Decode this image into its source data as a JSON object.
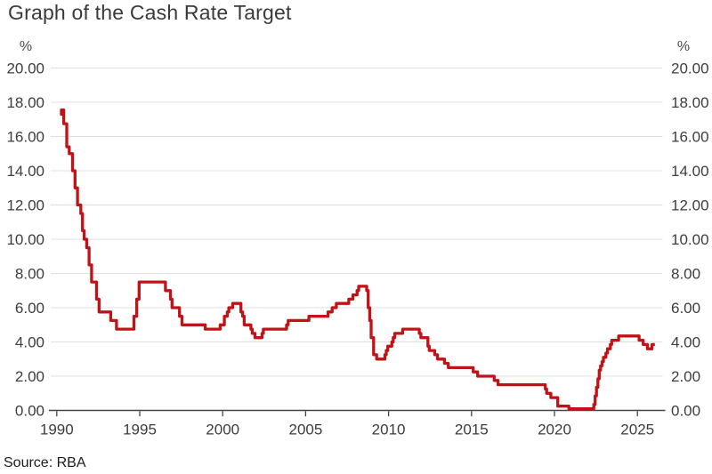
{
  "title": "Graph of the Cash Rate Target",
  "source": "Source: RBA",
  "axis_units": {
    "left": "%",
    "right": "%"
  },
  "colors": {
    "line": "#c11218",
    "grid": "#e0e0e0",
    "axis": "#444444",
    "text": "#3d3d3d",
    "background": "#ffffff"
  },
  "chart_data": {
    "type": "line",
    "subtype": "step",
    "title": "Graph of the Cash Rate Target",
    "xlabel": "",
    "ylabel": "%",
    "ylim": [
      0,
      20
    ],
    "xlim": [
      1989.6,
      2026.4
    ],
    "grid": "horizontal",
    "legend": "none",
    "source": "Source: RBA",
    "y_ticks": {
      "values": [
        0,
        2,
        4,
        6,
        8,
        10,
        12,
        14,
        16,
        18,
        20
      ],
      "labels": [
        "0.00",
        "2.00",
        "4.00",
        "6.00",
        "8.00",
        "10.00",
        "12.00",
        "14.00",
        "16.00",
        "18.00",
        "20.00"
      ]
    },
    "x_ticks": {
      "values": [
        1990,
        1995,
        2000,
        2005,
        2010,
        2015,
        2020,
        2025
      ],
      "labels": [
        "1990",
        "1995",
        "2000",
        "2005",
        "2010",
        "2015",
        "2020",
        "2025"
      ]
    },
    "series": [
      {
        "name": "Cash Rate Target (%)",
        "color": "#c11218",
        "x_end": 2026.05,
        "points": [
          [
            1990.2,
            17.3
          ],
          [
            1990.28,
            17.55
          ],
          [
            1990.42,
            16.75
          ],
          [
            1990.6,
            15.4
          ],
          [
            1990.75,
            15.0
          ],
          [
            1990.95,
            14.0
          ],
          [
            1991.1,
            13.0
          ],
          [
            1991.25,
            12.0
          ],
          [
            1991.45,
            11.5
          ],
          [
            1991.55,
            10.5
          ],
          [
            1991.65,
            10.0
          ],
          [
            1991.8,
            9.5
          ],
          [
            1991.95,
            8.5
          ],
          [
            1992.1,
            7.5
          ],
          [
            1992.4,
            6.5
          ],
          [
            1992.55,
            5.75
          ],
          [
            1993.25,
            5.25
          ],
          [
            1993.6,
            4.75
          ],
          [
            1994.65,
            5.5
          ],
          [
            1994.82,
            6.5
          ],
          [
            1994.96,
            7.5
          ],
          [
            1996.55,
            7.0
          ],
          [
            1996.85,
            6.5
          ],
          [
            1996.95,
            6.0
          ],
          [
            1997.4,
            5.5
          ],
          [
            1997.55,
            5.0
          ],
          [
            1998.95,
            4.75
          ],
          [
            1999.85,
            5.0
          ],
          [
            2000.1,
            5.5
          ],
          [
            2000.28,
            5.75
          ],
          [
            2000.37,
            6.0
          ],
          [
            2000.6,
            6.25
          ],
          [
            2001.1,
            5.75
          ],
          [
            2001.2,
            5.5
          ],
          [
            2001.3,
            5.0
          ],
          [
            2001.7,
            4.75
          ],
          [
            2001.78,
            4.5
          ],
          [
            2001.95,
            4.25
          ],
          [
            2002.37,
            4.5
          ],
          [
            2002.45,
            4.75
          ],
          [
            2003.85,
            5.0
          ],
          [
            2003.95,
            5.25
          ],
          [
            2005.2,
            5.5
          ],
          [
            2006.35,
            5.75
          ],
          [
            2006.6,
            6.0
          ],
          [
            2006.85,
            6.25
          ],
          [
            2007.6,
            6.5
          ],
          [
            2007.85,
            6.75
          ],
          [
            2008.1,
            7.0
          ],
          [
            2008.2,
            7.25
          ],
          [
            2008.68,
            7.0
          ],
          [
            2008.77,
            6.0
          ],
          [
            2008.86,
            5.25
          ],
          [
            2008.95,
            4.25
          ],
          [
            2009.1,
            3.25
          ],
          [
            2009.28,
            3.0
          ],
          [
            2009.78,
            3.25
          ],
          [
            2009.86,
            3.5
          ],
          [
            2009.95,
            3.75
          ],
          [
            2010.2,
            4.0
          ],
          [
            2010.28,
            4.25
          ],
          [
            2010.37,
            4.5
          ],
          [
            2010.85,
            4.75
          ],
          [
            2011.85,
            4.5
          ],
          [
            2011.95,
            4.25
          ],
          [
            2012.37,
            3.75
          ],
          [
            2012.45,
            3.5
          ],
          [
            2012.78,
            3.25
          ],
          [
            2012.95,
            3.0
          ],
          [
            2013.37,
            2.75
          ],
          [
            2013.6,
            2.5
          ],
          [
            2015.1,
            2.25
          ],
          [
            2015.37,
            2.0
          ],
          [
            2016.37,
            1.75
          ],
          [
            2016.6,
            1.5
          ],
          [
            2019.45,
            1.25
          ],
          [
            2019.53,
            1.0
          ],
          [
            2019.78,
            0.75
          ],
          [
            2020.2,
            0.25
          ],
          [
            2020.87,
            0.1
          ],
          [
            2022.37,
            0.35
          ],
          [
            2022.45,
            0.85
          ],
          [
            2022.53,
            1.35
          ],
          [
            2022.62,
            1.85
          ],
          [
            2022.7,
            2.35
          ],
          [
            2022.78,
            2.6
          ],
          [
            2022.87,
            2.85
          ],
          [
            2022.95,
            3.1
          ],
          [
            2023.1,
            3.35
          ],
          [
            2023.2,
            3.6
          ],
          [
            2023.37,
            3.85
          ],
          [
            2023.45,
            4.1
          ],
          [
            2023.87,
            4.35
          ],
          [
            2025.1,
            4.1
          ],
          [
            2025.35,
            3.85
          ],
          [
            2025.6,
            3.6
          ],
          [
            2025.88,
            3.85
          ]
        ]
      }
    ]
  }
}
